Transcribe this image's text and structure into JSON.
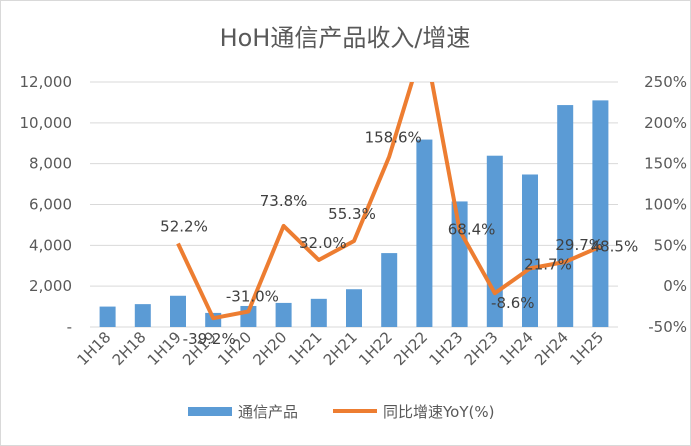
{
  "chart_data": {
    "type": "bar+line",
    "title": "HoH通信产品收入/增速",
    "categories": [
      "1H18",
      "2H18",
      "1H19",
      "2H19",
      "1H20",
      "2H20",
      "1H21",
      "2H21",
      "1H22",
      "2H22",
      "1H23",
      "2H23",
      "1H24",
      "2H24",
      "1H25"
    ],
    "series": [
      {
        "name": "通信产品",
        "type": "bar",
        "axis": "left",
        "color": "#5B9BD5",
        "values": [
          1000,
          1120,
          1530,
          690,
          1030,
          1180,
          1380,
          1850,
          3620,
          9180,
          6150,
          8390,
          7470,
          10870,
          11100
        ]
      },
      {
        "name": "同比增速YoY(%)",
        "type": "line",
        "axis": "right",
        "color": "#ED7D31",
        "values": [
          null,
          null,
          52.2,
          -39.2,
          -31.0,
          73.8,
          32.0,
          55.3,
          158.6,
          300,
          68.4,
          -8.6,
          21.7,
          29.7,
          48.5
        ],
        "labels": [
          "",
          "",
          "52.2%",
          "-39.2%",
          "-31.0%",
          "73.8%",
          "32.0%",
          "55.3%",
          "158.6%",
          "",
          "68.4%",
          "-8.6%",
          "21.7%",
          "29.7%",
          "48.5%"
        ]
      }
    ],
    "left_axis": {
      "min": 0,
      "max": 12000,
      "ticks": [
        "-",
        "2,000",
        "4,000",
        "6,000",
        "8,000",
        "10,000",
        "12,000"
      ],
      "tick_values": [
        0,
        2000,
        4000,
        6000,
        8000,
        10000,
        12000
      ]
    },
    "right_axis": {
      "min": -50,
      "max": 250,
      "ticks": [
        "-50%",
        "0%",
        "50%",
        "100%",
        "150%",
        "200%",
        "250%"
      ],
      "tick_values": [
        -50,
        0,
        50,
        100,
        150,
        200,
        250
      ]
    },
    "grid": true,
    "legend_position": "bottom"
  }
}
